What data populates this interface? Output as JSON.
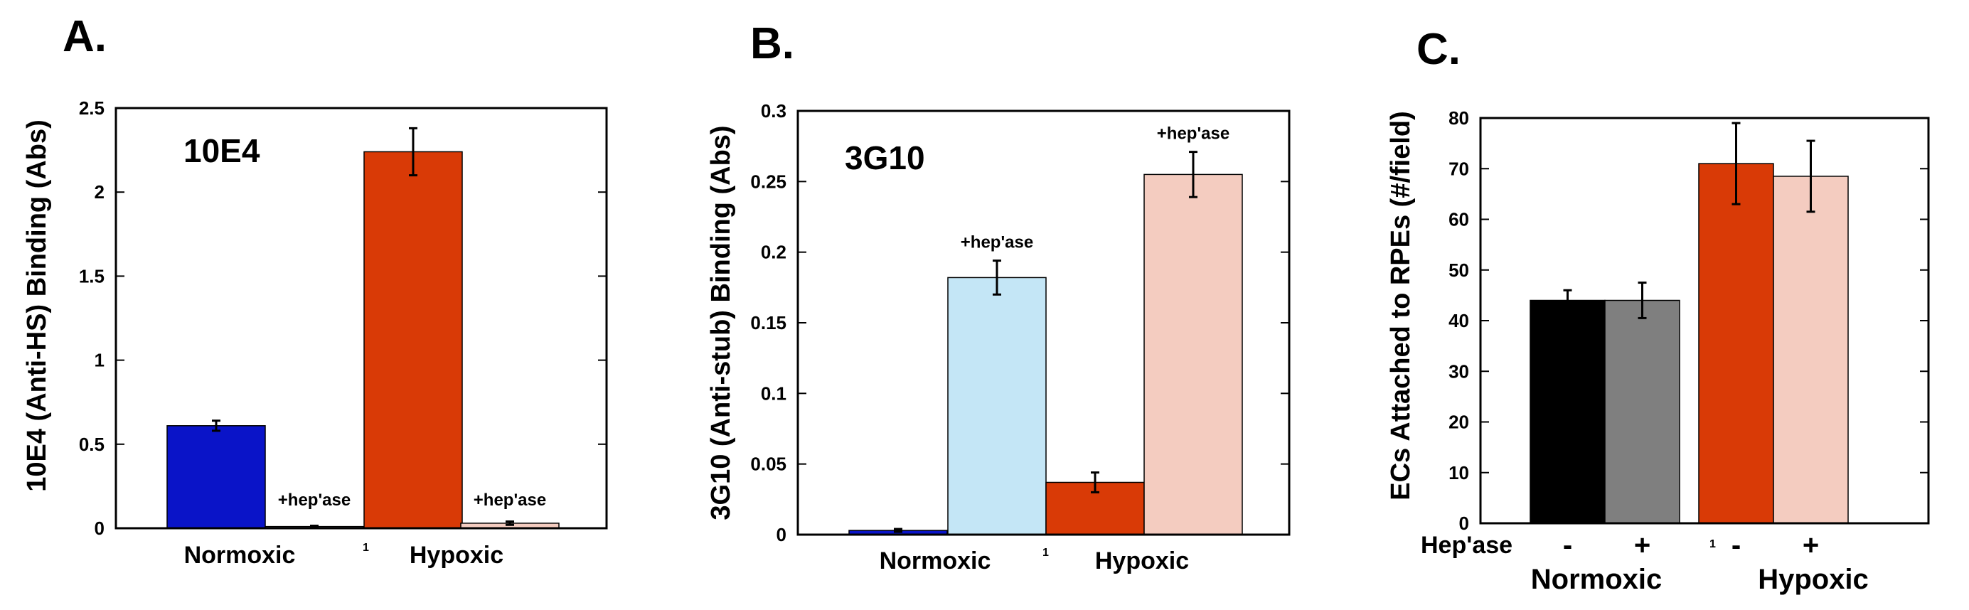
{
  "chart_data": [
    {
      "type": "bar",
      "panel_label": "A.",
      "inner_label": "10E4",
      "ylabel": "10E4 (Anti-HS) Binding (Abs)",
      "ylim": [
        0,
        2.5
      ],
      "yticks": [
        0,
        0.5,
        1,
        1.5,
        2,
        2.5
      ],
      "ytick_labels": [
        "0",
        "0.5",
        "1",
        "1.5",
        "2",
        "2.5"
      ],
      "categories": [
        "Normoxic",
        "Hypoxic"
      ],
      "stray_tick_label": "1",
      "bars": [
        {
          "group": "Normoxic",
          "treatment": "-",
          "value": 0.61,
          "error": 0.03,
          "color": "#0a14c8",
          "annotation": ""
        },
        {
          "group": "Normoxic",
          "treatment": "+hep'ase",
          "value": 0.01,
          "error": 0.005,
          "color": "#c4e6f6",
          "annotation": "+hep'ase"
        },
        {
          "group": "Hypoxic",
          "treatment": "-",
          "value": 2.24,
          "error": 0.14,
          "color": "#d93a06",
          "annotation": ""
        },
        {
          "group": "Hypoxic",
          "treatment": "+hep'ase",
          "value": 0.03,
          "error": 0.01,
          "color": "#f4ccc0",
          "annotation": "+hep'ase"
        }
      ]
    },
    {
      "type": "bar",
      "panel_label": "B.",
      "inner_label": "3G10",
      "ylabel": "3G10 (Anti-stub) Binding (Abs)",
      "ylim": [
        0,
        0.3
      ],
      "yticks": [
        0,
        0.05,
        0.1,
        0.15,
        0.2,
        0.25,
        0.3
      ],
      "ytick_labels": [
        "0",
        "0.05",
        "0.1",
        "0.15",
        "0.2",
        "0.25",
        "0.3"
      ],
      "categories": [
        "Normoxic",
        "Hypoxic"
      ],
      "stray_tick_label": "1",
      "bars": [
        {
          "group": "Normoxic",
          "treatment": "-",
          "value": 0.003,
          "error": 0.001,
          "color": "#0a14c8",
          "annotation": ""
        },
        {
          "group": "Normoxic",
          "treatment": "+hep'ase",
          "value": 0.182,
          "error": 0.012,
          "color": "#c4e6f6",
          "annotation": "+hep'ase"
        },
        {
          "group": "Hypoxic",
          "treatment": "-",
          "value": 0.037,
          "error": 0.007,
          "color": "#d93a06",
          "annotation": ""
        },
        {
          "group": "Hypoxic",
          "treatment": "+hep'ase",
          "value": 0.255,
          "error": 0.016,
          "color": "#f4ccc0",
          "annotation": "+hep'ase"
        }
      ]
    },
    {
      "type": "bar",
      "panel_label": "C.",
      "inner_label": "",
      "ylabel": "ECs Attached to RPEs (#/field)",
      "ylim": [
        0,
        80
      ],
      "yticks": [
        0,
        10,
        20,
        30,
        40,
        50,
        60,
        70,
        80
      ],
      "ytick_labels": [
        "0",
        "10",
        "20",
        "30",
        "40",
        "50",
        "60",
        "70",
        "80"
      ],
      "categories": [
        "Normoxic",
        "Hypoxic"
      ],
      "row_label": "Hep'ase",
      "stray_tick_label": "1",
      "bars": [
        {
          "group": "Normoxic",
          "treatment": "-",
          "value": 44,
          "error": 2,
          "color": "#000000",
          "annotation": ""
        },
        {
          "group": "Normoxic",
          "treatment": "+",
          "value": 44,
          "error": 3.5,
          "color": "#7f7f7f",
          "annotation": ""
        },
        {
          "group": "Hypoxic",
          "treatment": "-",
          "value": 71,
          "error": 8,
          "color": "#d93a06",
          "annotation": ""
        },
        {
          "group": "Hypoxic",
          "treatment": "+",
          "value": 68.5,
          "error": 7,
          "color": "#f4ccc0",
          "annotation": ""
        }
      ]
    }
  ]
}
